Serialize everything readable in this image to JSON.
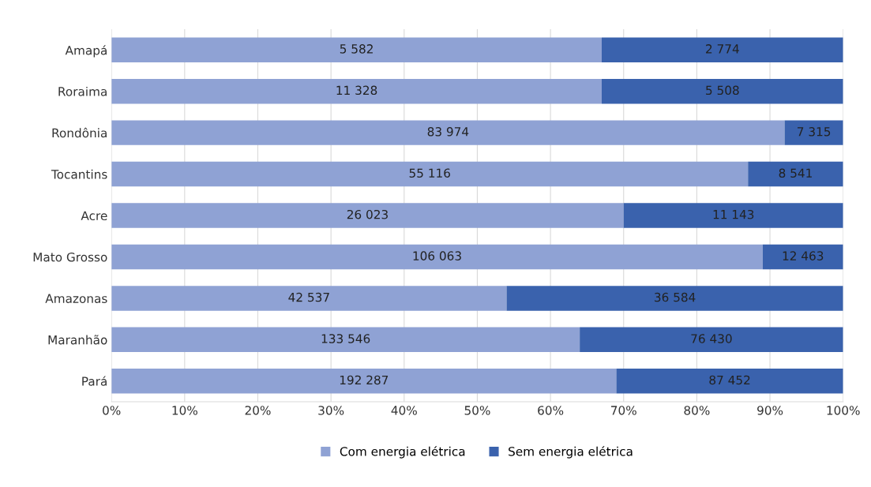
{
  "chart_data": {
    "type": "bar",
    "orientation": "horizontal",
    "stacked": true,
    "categories": [
      "Amapá",
      "Roraima",
      "Rondônia",
      "Tocantins",
      "Acre",
      "Mato Grosso",
      "Amazonas",
      "Maranhão",
      "Pará"
    ],
    "series": [
      {
        "name": "Com energia elétrica",
        "color": "#8fa2d4",
        "values": [
          67,
          67,
          92,
          87,
          70,
          89,
          54,
          64,
          69
        ]
      },
      {
        "name": "Sem energia elétrica",
        "color": "#3a62ad",
        "values": [
          33,
          33,
          8,
          13,
          30,
          11,
          46,
          36,
          31
        ]
      }
    ],
    "annotations": [
      "5 582",
      "2 774",
      "11 328",
      "5 508",
      "83 974",
      "7 315",
      "55 116",
      "8 541",
      "26 023",
      "11 143",
      "106 063",
      "12 463",
      "42 537",
      "36 584",
      "133 546",
      "76 430",
      "192 287",
      "87 452"
    ],
    "xlim": [
      0,
      100
    ],
    "xticks": [
      {
        "value": 0,
        "label": "0%"
      },
      {
        "value": 10,
        "label": "10%"
      },
      {
        "value": 20,
        "label": "20%"
      },
      {
        "value": 30,
        "label": "30%"
      },
      {
        "value": 40,
        "label": "40%"
      },
      {
        "value": 50,
        "label": "50%"
      },
      {
        "value": 60,
        "label": "60%"
      },
      {
        "value": 70,
        "label": "70%"
      },
      {
        "value": 80,
        "label": "80%"
      },
      {
        "value": 90,
        "label": "90%"
      },
      {
        "value": 100,
        "label": "100%"
      }
    ],
    "grid": "x",
    "legend": "bottom"
  }
}
